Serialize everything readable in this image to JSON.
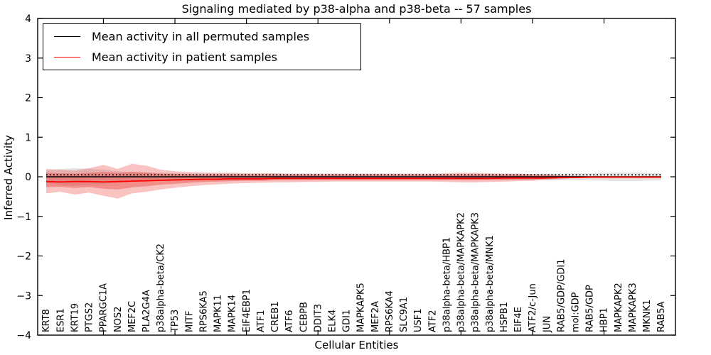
{
  "title": "Signaling mediated by p38-alpha and p38-beta -- 57 samples",
  "axes": {
    "xlabel": "Cellular Entities",
    "ylabel": "Inferred Activity"
  },
  "legend": {
    "items": [
      {
        "label": "Mean activity in all permuted samples",
        "color": "#000000"
      },
      {
        "label": "Mean activity in patient samples",
        "color": "#ff0000"
      }
    ],
    "position": "upper left"
  },
  "chart_data": {
    "type": "line",
    "title": "Signaling mediated by p38-alpha and p38-beta -- 57 samples",
    "xlabel": "Cellular Entities",
    "ylabel": "Inferred Activity",
    "ylim": [
      -4,
      4
    ],
    "yticks": [
      4,
      3,
      2,
      1,
      0,
      -1,
      -2,
      -3,
      -4
    ],
    "grid": false,
    "legend_position": "upper left",
    "x_major_tick_indices": [
      4,
      9,
      14,
      19,
      24,
      29,
      34,
      39
    ],
    "categories": [
      "KRT8",
      "ESR1",
      "KRT19",
      "PTGS2",
      "PPARGC1A",
      "NOS2",
      "MEF2C",
      "PLA2G4A",
      "p38alpha-beta/CK2",
      "TP53",
      "MITF",
      "RPS6KA5",
      "MAPK11",
      "MAPK14",
      "EIF4EBP1",
      "ATF1",
      "CREB1",
      "ATF6",
      "CEBPB",
      "DDIT3",
      "ELK4",
      "GDI1",
      "MAPKAPK5",
      "MEF2A",
      "RPS6KA4",
      "SLC9A1",
      "USF1",
      "ATF2",
      "p38alpha-beta/HBP1",
      "p38alpha-beta/MAPKAPK2",
      "p38alpha-beta/MAPKAPK3",
      "p38alpha-beta/MNK1",
      "HSPB1",
      "EIF4E",
      "ATF2/c-Jun",
      "JUN",
      "RAB5/GDP/GDI1",
      "mol:GDP",
      "RAB5/GDP",
      "HBP1",
      "MAPKAPK2",
      "MAPKAPK3",
      "MKNK1",
      "RAB5A"
    ],
    "series": [
      {
        "name": "Mean activity in all permuted samples",
        "color": "#000000",
        "values": [
          0,
          0,
          0,
          0,
          0,
          0,
          0,
          0,
          0,
          0,
          0,
          0,
          0,
          0,
          0,
          0,
          0,
          0,
          0,
          0,
          0,
          0,
          0,
          0,
          0,
          0,
          0,
          0,
          0,
          0,
          0,
          0,
          0,
          0,
          0,
          0,
          0,
          0,
          0,
          0,
          0,
          0,
          0,
          0
        ]
      },
      {
        "name": "Mean activity in patient samples",
        "color": "#ff0000",
        "values": [
          -0.12,
          -0.13,
          -0.12,
          -0.12,
          -0.13,
          -0.12,
          -0.11,
          -0.1,
          -0.09,
          -0.08,
          -0.07,
          -0.06,
          -0.06,
          -0.05,
          -0.05,
          -0.05,
          -0.04,
          -0.04,
          -0.04,
          -0.04,
          -0.04,
          -0.04,
          -0.04,
          -0.04,
          -0.04,
          -0.04,
          -0.04,
          -0.04,
          -0.04,
          -0.04,
          -0.04,
          -0.04,
          -0.03,
          -0.03,
          -0.03,
          -0.03,
          -0.02,
          -0.02,
          -0.01,
          -0.01,
          -0.01,
          -0.01,
          -0.01,
          -0.01
        ]
      }
    ],
    "bands": [
      {
        "name": "permuted-samples-std",
        "color": "rgba(130,130,130,0.22)",
        "upper": [
          0.16,
          0.2,
          0.22,
          0.2,
          0.18,
          0.14,
          0.12,
          0.11,
          0.1,
          0.09,
          0.09,
          0.08,
          0.08,
          0.08,
          0.08,
          0.08,
          0.08,
          0.07,
          0.07,
          0.07,
          0.07,
          0.07,
          0.07,
          0.07,
          0.07,
          0.07,
          0.07,
          0.07,
          0.07,
          0.07,
          0.07,
          0.07,
          0.07,
          0.07,
          0.07,
          0.08,
          0.08,
          0.09,
          0.09,
          0.1,
          0.11,
          0.11,
          0.1,
          0.09
        ],
        "lower": [
          -0.16,
          -0.2,
          -0.22,
          -0.2,
          -0.18,
          -0.14,
          -0.12,
          -0.11,
          -0.1,
          -0.09,
          -0.09,
          -0.08,
          -0.08,
          -0.08,
          -0.08,
          -0.08,
          -0.08,
          -0.07,
          -0.07,
          -0.07,
          -0.07,
          -0.07,
          -0.07,
          -0.07,
          -0.07,
          -0.07,
          -0.07,
          -0.07,
          -0.07,
          -0.07,
          -0.07,
          -0.07,
          -0.07,
          -0.07,
          -0.07,
          -0.08,
          -0.08,
          -0.09,
          -0.09,
          -0.1,
          -0.11,
          -0.11,
          -0.1,
          -0.09
        ]
      },
      {
        "name": "patient-samples-std-outer",
        "color": "rgba(232,55,50,0.30)",
        "upper": [
          0.2,
          0.18,
          0.16,
          0.22,
          0.3,
          0.2,
          0.33,
          0.28,
          0.18,
          0.14,
          0.12,
          0.11,
          0.1,
          0.1,
          0.09,
          0.09,
          0.09,
          0.08,
          0.08,
          0.08,
          0.08,
          0.08,
          0.08,
          0.08,
          0.08,
          0.08,
          0.08,
          0.08,
          0.09,
          0.1,
          0.1,
          0.09,
          0.08,
          0.08,
          0.07,
          0.06,
          0.04,
          0.02,
          0.015,
          0.015,
          0.015,
          0.015,
          0.015,
          0.015
        ],
        "lower": [
          -0.42,
          -0.38,
          -0.45,
          -0.4,
          -0.48,
          -0.55,
          -0.42,
          -0.38,
          -0.32,
          -0.28,
          -0.24,
          -0.21,
          -0.19,
          -0.17,
          -0.16,
          -0.15,
          -0.14,
          -0.14,
          -0.13,
          -0.13,
          -0.12,
          -0.12,
          -0.12,
          -0.12,
          -0.12,
          -0.12,
          -0.12,
          -0.12,
          -0.13,
          -0.14,
          -0.14,
          -0.13,
          -0.12,
          -0.11,
          -0.1,
          -0.08,
          -0.06,
          -0.03,
          -0.02,
          -0.02,
          -0.02,
          -0.02,
          -0.02,
          -0.02
        ]
      },
      {
        "name": "patient-samples-std-inner",
        "color": "rgba(232,55,50,0.38)",
        "upper": [
          0.1,
          0.09,
          0.08,
          0.1,
          0.12,
          0.1,
          0.12,
          0.11,
          0.08,
          0.07,
          0.06,
          0.05,
          0.05,
          0.05,
          0.04,
          0.04,
          0.04,
          0.04,
          0.04,
          0.04,
          0.04,
          0.04,
          0.04,
          0.04,
          0.04,
          0.04,
          0.04,
          0.04,
          0.04,
          0.05,
          0.05,
          0.04,
          0.04,
          0.04,
          0.03,
          0.03,
          0.02,
          0.01,
          0.01,
          0.01,
          0.01,
          0.01,
          0.01,
          0.01
        ],
        "lower": [
          -0.26,
          -0.25,
          -0.28,
          -0.26,
          -0.3,
          -0.32,
          -0.27,
          -0.24,
          -0.2,
          -0.18,
          -0.15,
          -0.13,
          -0.12,
          -0.11,
          -0.1,
          -0.1,
          -0.09,
          -0.09,
          -0.09,
          -0.08,
          -0.08,
          -0.08,
          -0.08,
          -0.08,
          -0.08,
          -0.08,
          -0.08,
          -0.08,
          -0.08,
          -0.09,
          -0.09,
          -0.08,
          -0.08,
          -0.07,
          -0.07,
          -0.05,
          -0.04,
          -0.02,
          -0.015,
          -0.015,
          -0.015,
          -0.015,
          -0.015,
          -0.015
        ]
      }
    ]
  }
}
